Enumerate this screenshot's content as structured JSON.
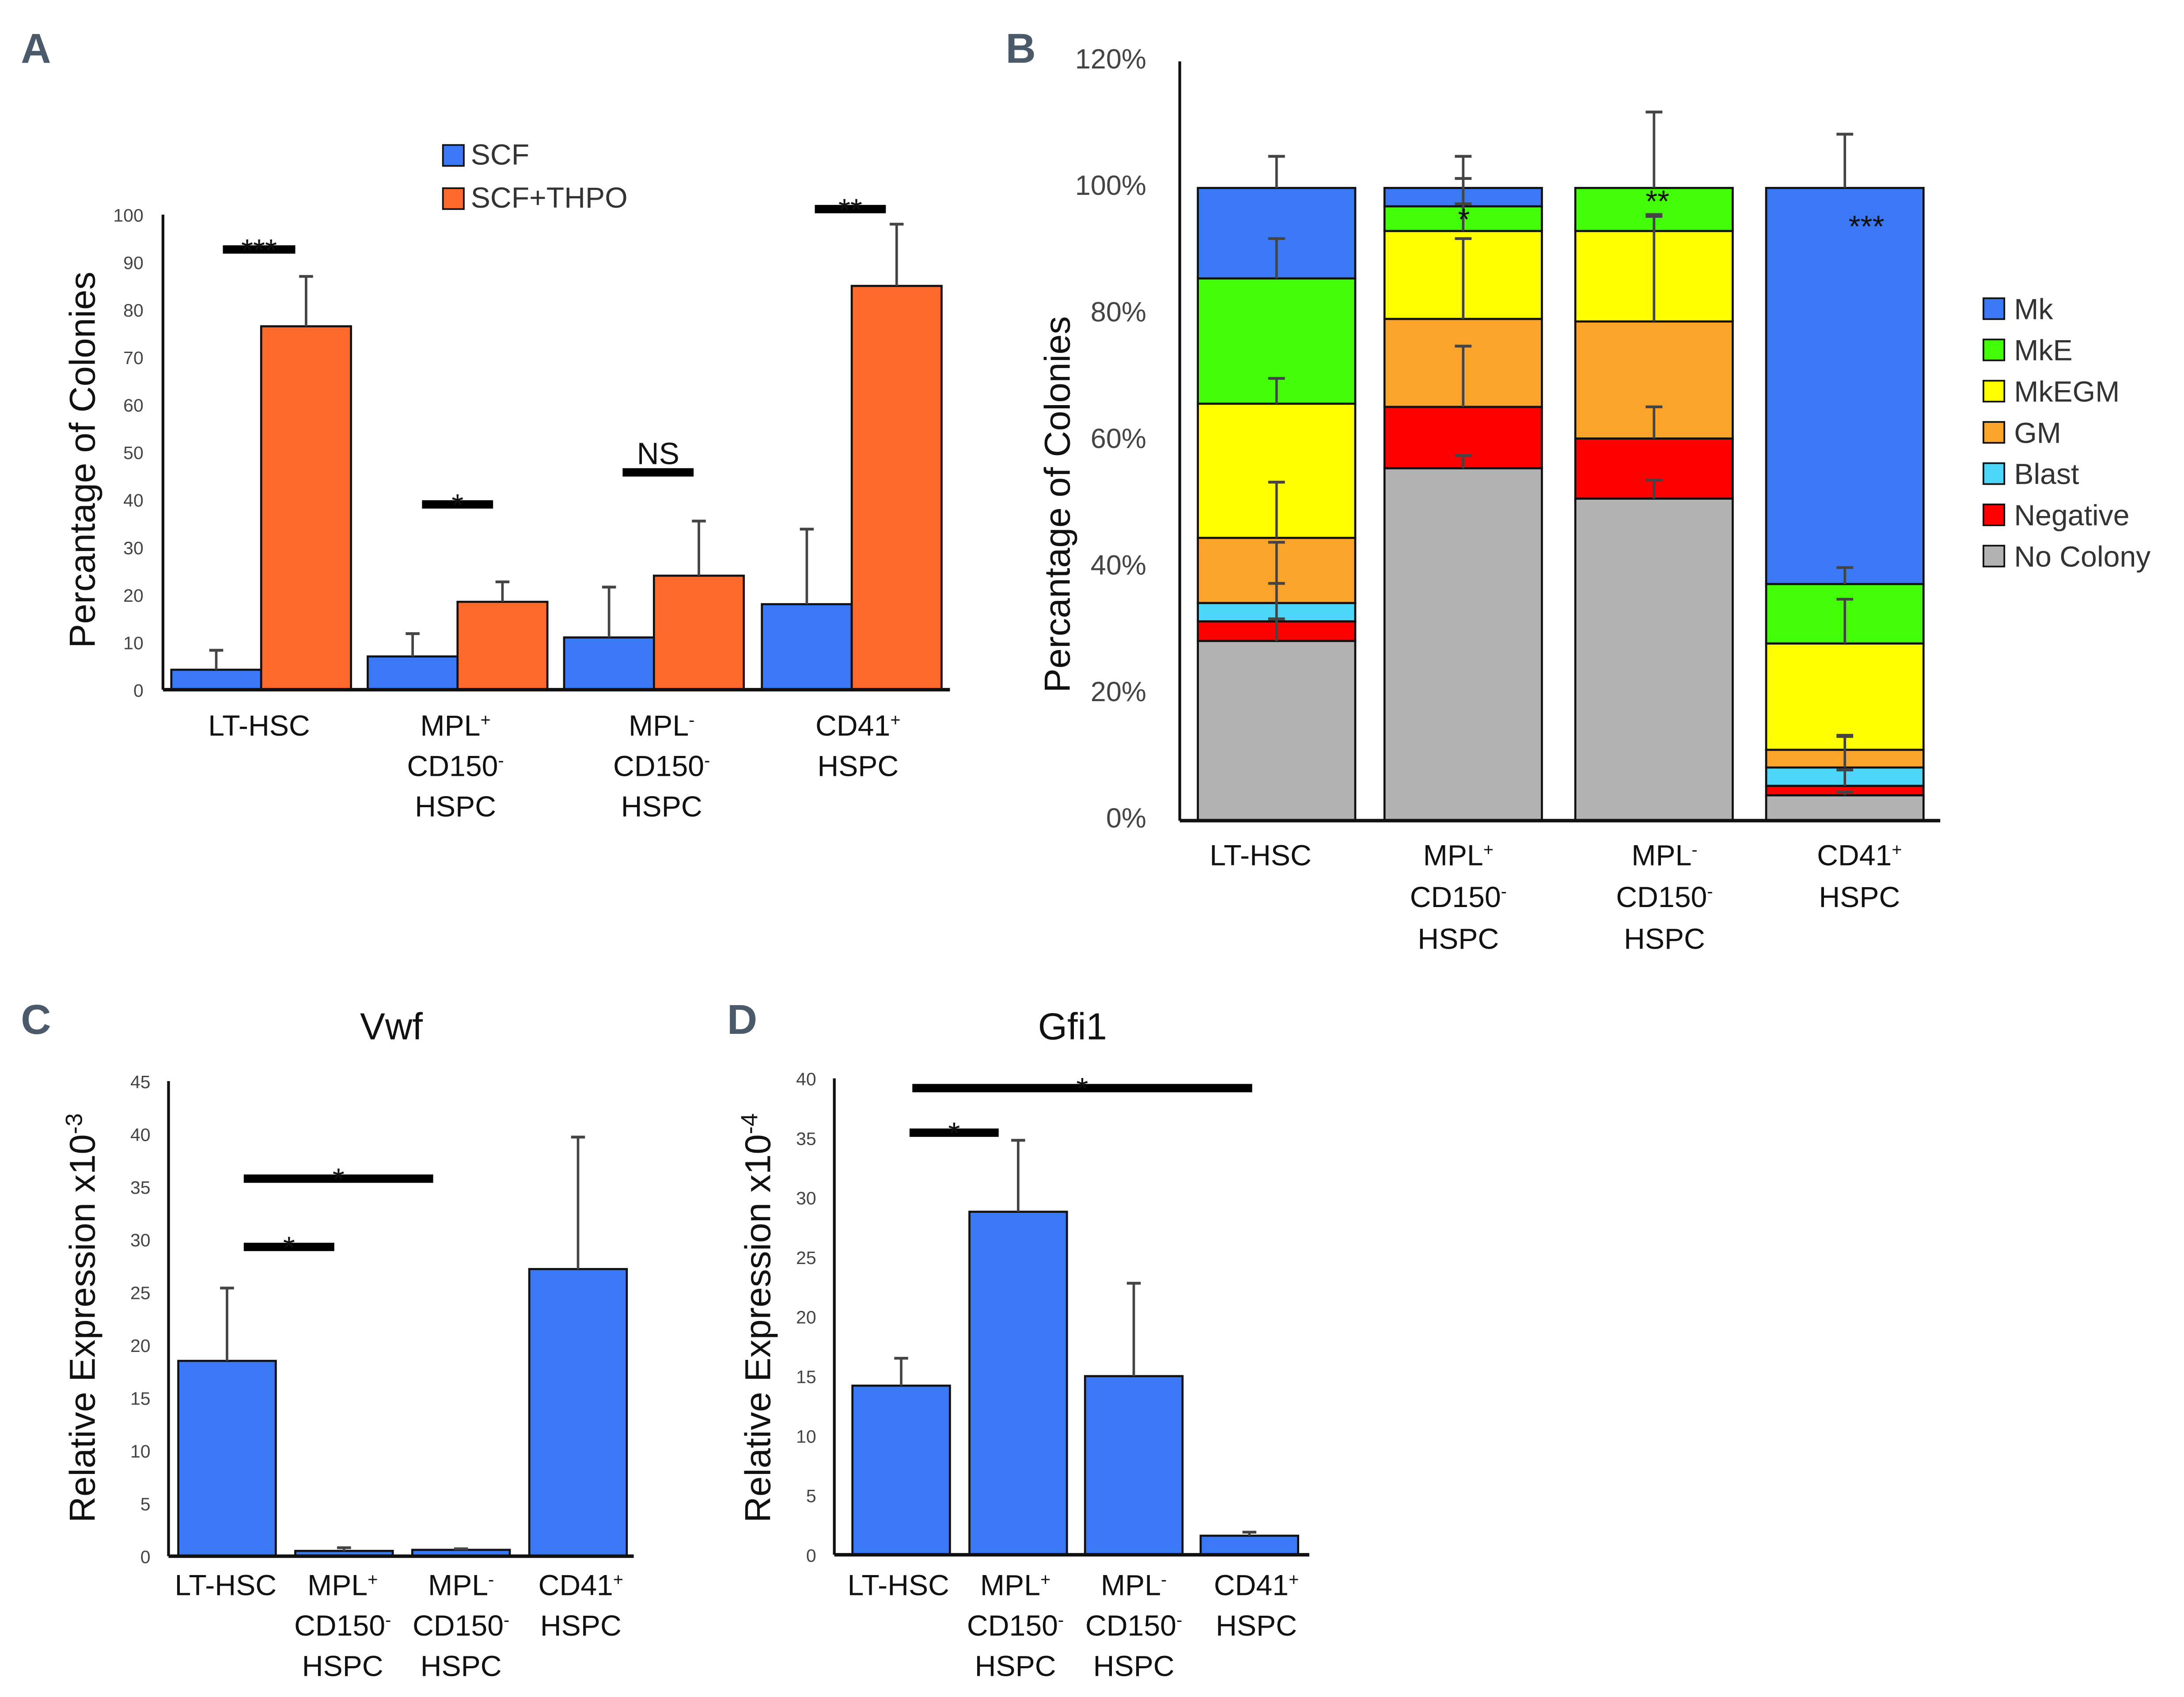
{
  "chart_data": [
    {
      "panel": "A",
      "type": "bar",
      "ylabel": "Percantage of Colonies",
      "ylim": [
        0,
        100
      ],
      "yticks": [
        0,
        10,
        20,
        30,
        40,
        50,
        60,
        70,
        80,
        90,
        100
      ],
      "categories": [
        [
          "LT-HSC"
        ],
        [
          "MPL+",
          "CD150-",
          "HSPC"
        ],
        [
          "MPL-",
          "CD150-",
          "HSPC"
        ],
        [
          "CD41+",
          "HSPC"
        ]
      ],
      "series": [
        {
          "name": "SCF",
          "color": "#3b78f5",
          "values": [
            4.2,
            7.0,
            11.0,
            18.0
          ],
          "error_plus": [
            4.1,
            4.8,
            10.6,
            15.8
          ]
        },
        {
          "name": "SCF+THPO",
          "color": "#fd6a2b",
          "values": [
            76.5,
            18.5,
            24.0,
            85.0
          ],
          "error_plus": [
            10.5,
            4.2,
            11.5,
            13.0
          ]
        }
      ],
      "legend": "top-center",
      "significance": [
        {
          "category": 0,
          "label": "***"
        },
        {
          "category": 1,
          "label": "*"
        },
        {
          "category": 2,
          "label": "NS"
        },
        {
          "category": 3,
          "label": "**"
        }
      ]
    },
    {
      "panel": "B",
      "type": "bar",
      "stacked": true,
      "ylabel": "Percantage of Colonies",
      "ylim": [
        0,
        120
      ],
      "yticks": [
        "0%",
        "20%",
        "40%",
        "60%",
        "80%",
        "100%",
        "120%"
      ],
      "categories": [
        [
          "LT-HSC"
        ],
        [
          "MPL+",
          "CD150-",
          "HSPC"
        ],
        [
          "MPL-",
          "CD150-",
          "HSPC"
        ],
        [
          "CD41+",
          "HSPC"
        ]
      ],
      "series": [
        {
          "name": "No Colony",
          "color": "#b3b3b3",
          "values": [
            28.4,
            55.7,
            50.9,
            4.0
          ],
          "error_plus": [
            3.5,
            2.0,
            2.9,
            0.5
          ]
        },
        {
          "name": "Negative",
          "color": "#ff0000",
          "values": [
            3.1,
            9.7,
            9.5,
            1.5
          ],
          "error_plus": [
            6.0,
            9.6,
            5.0,
            2.5
          ]
        },
        {
          "name": "Blast",
          "color": "#4dd6fa",
          "values": [
            2.9,
            0,
            0,
            2.9
          ],
          "error_plus": [
            9.6,
            0,
            0,
            4.9
          ]
        },
        {
          "name": "GM",
          "color": "#fba42a",
          "values": [
            10.3,
            13.9,
            18.5,
            2.8
          ],
          "error_plus": [
            8.8,
            12.7,
            16.6,
            2.3
          ]
        },
        {
          "name": "MkEGM",
          "color": "#ffff00",
          "values": [
            21.2,
            13.9,
            14.3,
            16.8
          ],
          "error_plus": [
            4.0,
            4.3,
            2.6,
            7.0
          ]
        },
        {
          "name": "MkE",
          "color": "#44ff0a",
          "values": [
            19.8,
            3.9,
            6.8,
            9.4
          ],
          "error_plus": [
            6.3,
            4.4,
            12.0,
            2.6
          ]
        },
        {
          "name": "Mk",
          "color": "#3b78f5",
          "values": [
            14.3,
            2.9,
            0,
            62.6
          ],
          "error_plus": [
            5.0,
            5.0,
            0,
            8.5
          ]
        }
      ],
      "legend": "right",
      "significance": [
        {
          "category": 1,
          "label": "*"
        },
        {
          "category": 2,
          "label": "**"
        },
        {
          "category": 3,
          "label": "***"
        }
      ]
    },
    {
      "panel": "C",
      "type": "bar",
      "title": "Vwf",
      "ylabel": "Relative Expression x10",
      "ylabel_exp": "-3",
      "ylim": [
        0,
        45
      ],
      "yticks": [
        0,
        5,
        10,
        15,
        20,
        25,
        30,
        35,
        40,
        45
      ],
      "categories": [
        [
          "LT-HSC"
        ],
        [
          "MPL+",
          "CD150-",
          "HSPC"
        ],
        [
          "MPL-",
          "CD150-",
          "HSPC"
        ],
        [
          "CD41+",
          "HSPC"
        ]
      ],
      "series": [
        {
          "color": "#3b78f5",
          "values": [
            18.5,
            0.5,
            0.6,
            27.2
          ],
          "error_plus": [
            6.9,
            0.3,
            0.1,
            12.5
          ]
        }
      ],
      "significance": [
        {
          "from": 0,
          "to": 1,
          "label": "*"
        },
        {
          "from": 0,
          "to": 2,
          "label": "*"
        }
      ]
    },
    {
      "panel": "D",
      "type": "bar",
      "title": "Gfi1",
      "ylabel": "Relative Expression x10",
      "ylabel_exp": "-4",
      "ylim": [
        0,
        40
      ],
      "yticks": [
        0,
        5,
        10,
        15,
        20,
        25,
        30,
        35,
        40
      ],
      "categories": [
        [
          "LT-HSC"
        ],
        [
          "MPL+",
          "CD150-",
          "HSPC"
        ],
        [
          "MPL-",
          "CD150-",
          "HSPC"
        ],
        [
          "CD41+",
          "HSPC"
        ]
      ],
      "series": [
        {
          "color": "#3b78f5",
          "values": [
            14.2,
            28.8,
            15.0,
            1.6
          ],
          "error_plus": [
            2.3,
            6.0,
            7.8,
            0.3
          ]
        }
      ],
      "significance": [
        {
          "from": 0,
          "to": 1,
          "label": "*"
        },
        {
          "from": 0,
          "to": 3,
          "label": "*"
        }
      ]
    }
  ]
}
